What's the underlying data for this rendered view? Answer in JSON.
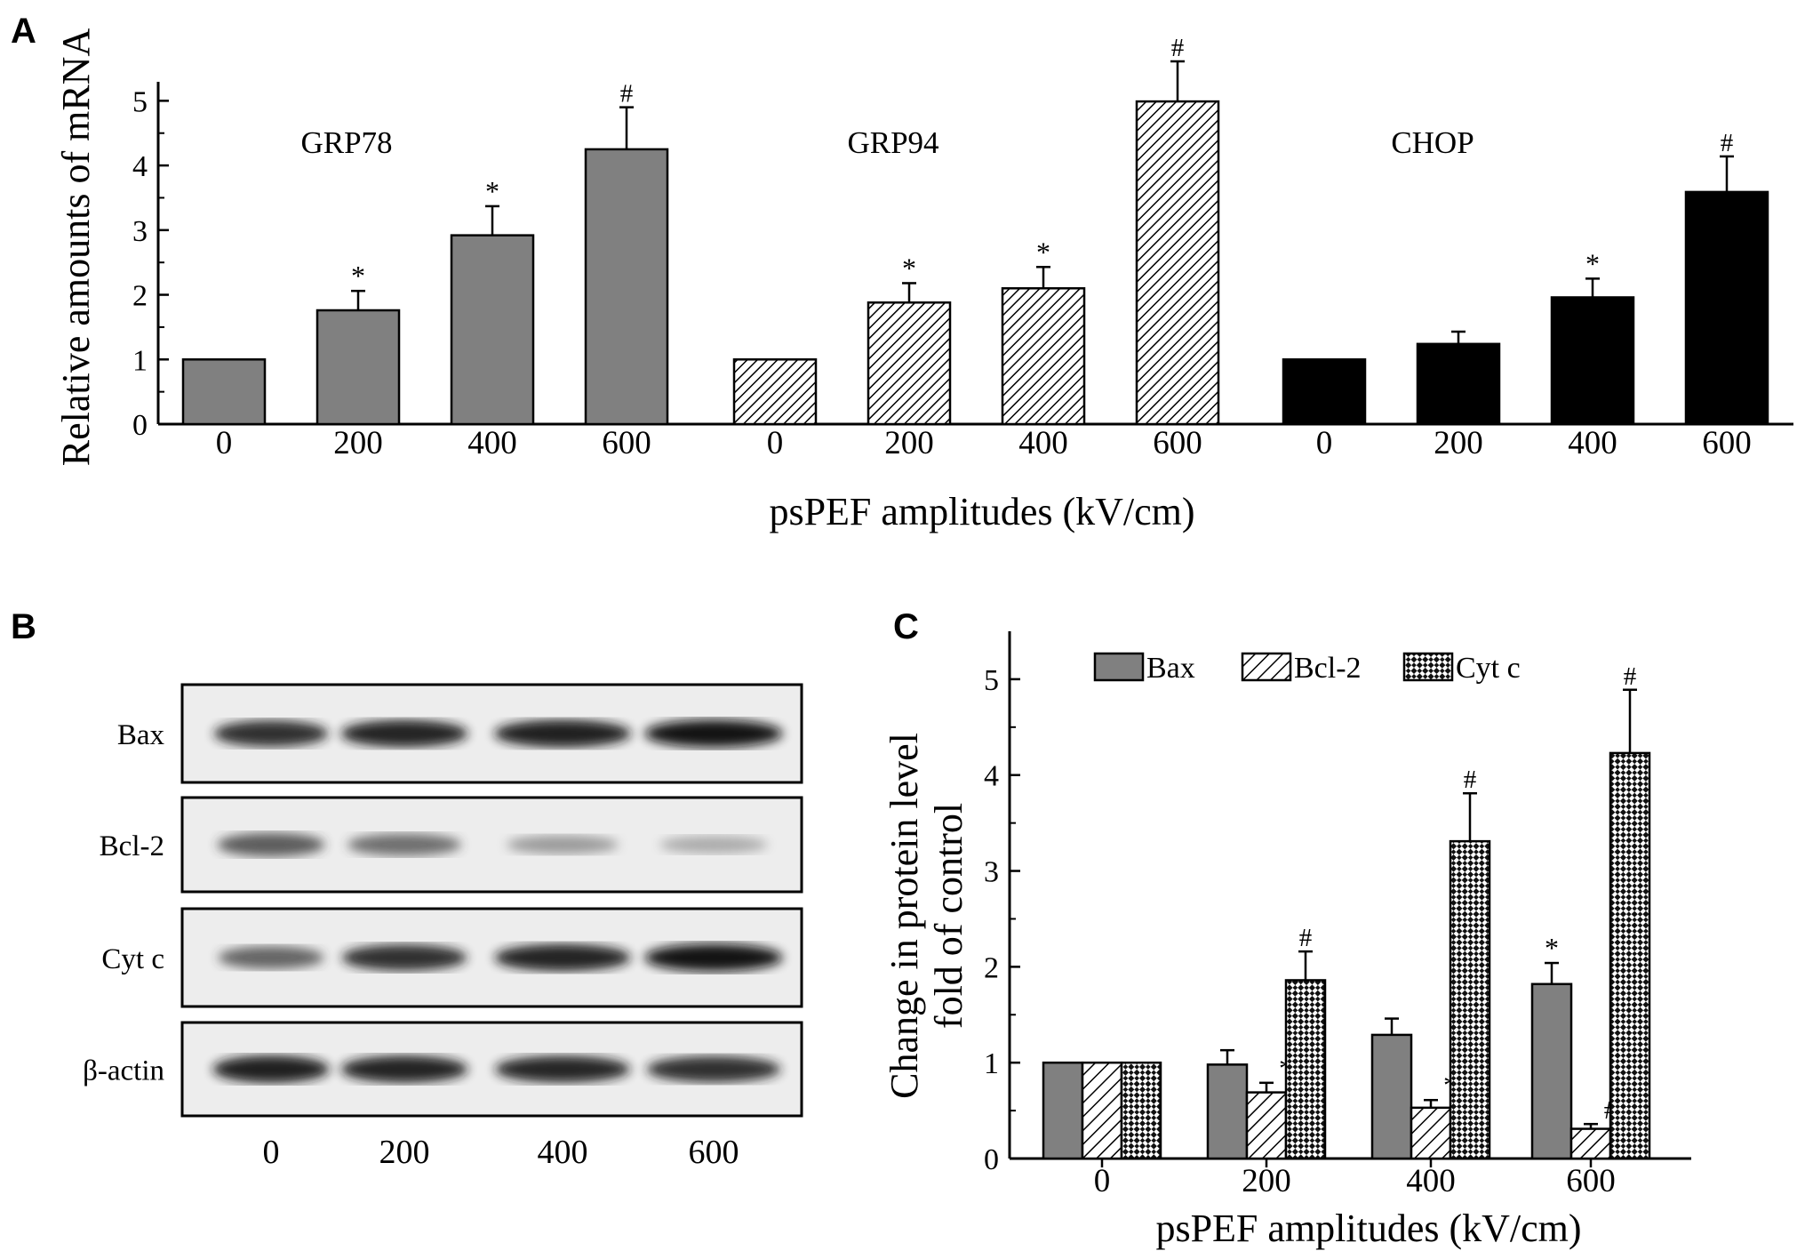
{
  "panels": {
    "A": "A",
    "B": "B",
    "C": "C"
  },
  "chart_data": [
    {
      "id": "A",
      "type": "bar",
      "ylabel": "Relative amounts of mRNA",
      "xlabel": "psPEF amplitudes (kV/cm)",
      "ylim": [
        0,
        5.5
      ],
      "yticks": [
        0,
        1,
        2,
        3,
        4,
        5
      ],
      "groups": [
        {
          "name": "GRP78",
          "fill": "gray",
          "categories": [
            "0",
            "200",
            "400",
            "600"
          ],
          "values": [
            1.0,
            1.76,
            2.92,
            4.25
          ],
          "errors": [
            0,
            0.3,
            0.45,
            0.65
          ],
          "significance": [
            "",
            "*",
            "*",
            "#"
          ]
        },
        {
          "name": "GRP94",
          "fill": "hatched",
          "categories": [
            "0",
            "200",
            "400",
            "600"
          ],
          "values": [
            1.0,
            1.88,
            2.1,
            4.99
          ],
          "errors": [
            0,
            0.3,
            0.33,
            0.62
          ],
          "significance": [
            "",
            "*",
            "*",
            "#"
          ]
        },
        {
          "name": "CHOP",
          "fill": "black",
          "categories": [
            "0",
            "200",
            "400",
            "600"
          ],
          "values": [
            1.0,
            1.24,
            1.96,
            3.59
          ],
          "errors": [
            0,
            0.19,
            0.29,
            0.55
          ],
          "significance": [
            "",
            "",
            "*",
            "#"
          ]
        }
      ]
    },
    {
      "id": "C",
      "type": "bar",
      "ylabel_line1": "Change in protein level",
      "ylabel_line2": "fold of control",
      "xlabel": "psPEF amplitudes (kV/cm)",
      "ylim": [
        0,
        5.5
      ],
      "yticks": [
        0,
        1,
        2,
        3,
        4,
        5
      ],
      "legend_position": "top",
      "categories": [
        "0",
        "200",
        "400",
        "600"
      ],
      "series": [
        {
          "name": "Bax",
          "fill": "gray",
          "values": [
            1.0,
            0.98,
            1.29,
            1.82
          ],
          "errors": [
            0,
            0.15,
            0.17,
            0.22
          ],
          "significance": [
            "",
            "",
            "",
            "*"
          ]
        },
        {
          "name": "Bcl-2",
          "fill": "hatched",
          "values": [
            1.0,
            0.69,
            0.53,
            0.31
          ],
          "errors": [
            0,
            0.1,
            0.08,
            0.05
          ],
          "significance": [
            "",
            "*",
            "*",
            "#"
          ]
        },
        {
          "name": "Cyt c",
          "fill": "crosshatch",
          "values": [
            1.0,
            1.86,
            3.31,
            4.23
          ],
          "errors": [
            0,
            0.3,
            0.5,
            0.66
          ],
          "significance": [
            "",
            "#",
            "#",
            "#"
          ]
        }
      ]
    }
  ],
  "western_blot": {
    "lanes": [
      "0",
      "200",
      "400",
      "600"
    ],
    "rows": [
      {
        "label": "Bax",
        "intensity": [
          0.85,
          0.9,
          0.92,
          0.95
        ]
      },
      {
        "label": "Bcl-2",
        "intensity": [
          0.65,
          0.55,
          0.3,
          0.2
        ]
      },
      {
        "label": "Cyt c",
        "intensity": [
          0.6,
          0.85,
          0.9,
          0.95
        ]
      },
      {
        "label": "β-actin",
        "intensity": [
          0.92,
          0.9,
          0.88,
          0.85
        ]
      }
    ]
  },
  "colors": {
    "gray_bar": "#808080",
    "black_bar": "#000000",
    "axis": "#000000",
    "blot_background": "#ededed"
  }
}
